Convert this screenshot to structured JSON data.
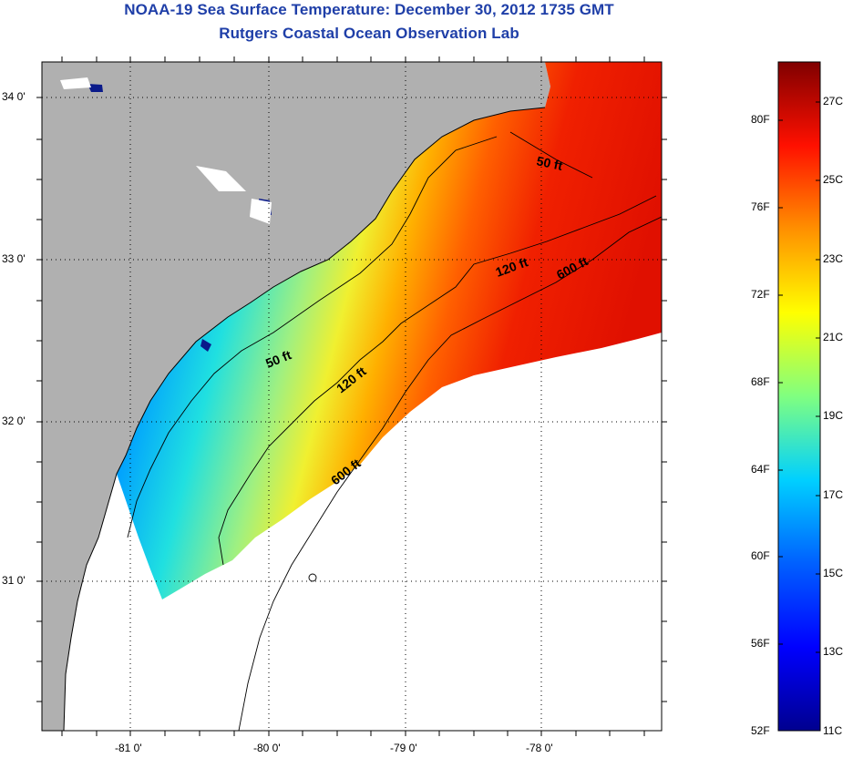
{
  "header": {
    "title": "NOAA-19 Sea Surface Temperature:  December 30, 2012 1735 GMT",
    "subtitle": "Rutgers Coastal Ocean Observation Lab"
  },
  "map": {
    "lat_ticks": [
      {
        "value": 34.0,
        "label": "34 0'"
      },
      {
        "value": 33.0,
        "label": "33 0'"
      },
      {
        "value": 32.0,
        "label": "32 0'"
      },
      {
        "value": 31.0,
        "label": "31 0'"
      }
    ],
    "lon_ticks": [
      {
        "value": -81.0,
        "label": "-81 0'"
      },
      {
        "value": -80.0,
        "label": "-80 0'"
      },
      {
        "value": -79.0,
        "label": "-79 0'"
      },
      {
        "value": -78.0,
        "label": "-78 0'"
      }
    ],
    "contour_labels": {
      "c50a": "50 ft",
      "c50b": "50 ft",
      "c120a": "120 ft",
      "c120b": "120 ft",
      "c600a": "600 ft",
      "c600b": "600 ft"
    },
    "colors": {
      "land": "#b0b0b0",
      "no_data": "#ffffff",
      "graticule": "#000000"
    }
  },
  "colorbar": {
    "range_celsius": [
      11,
      28
    ],
    "fahrenheit_labels": [
      "80F",
      "76F",
      "72F",
      "68F",
      "64F",
      "60F",
      "56F",
      "52F"
    ],
    "celsius_labels": [
      "27C",
      "25C",
      "23C",
      "21C",
      "19C",
      "17C",
      "15C",
      "13C",
      "11C"
    ],
    "colormap": [
      "#00008f",
      "#0000ff",
      "#0080ff",
      "#00ffff",
      "#80ff80",
      "#ffff00",
      "#ff8000",
      "#ff0000",
      "#800000"
    ]
  }
}
